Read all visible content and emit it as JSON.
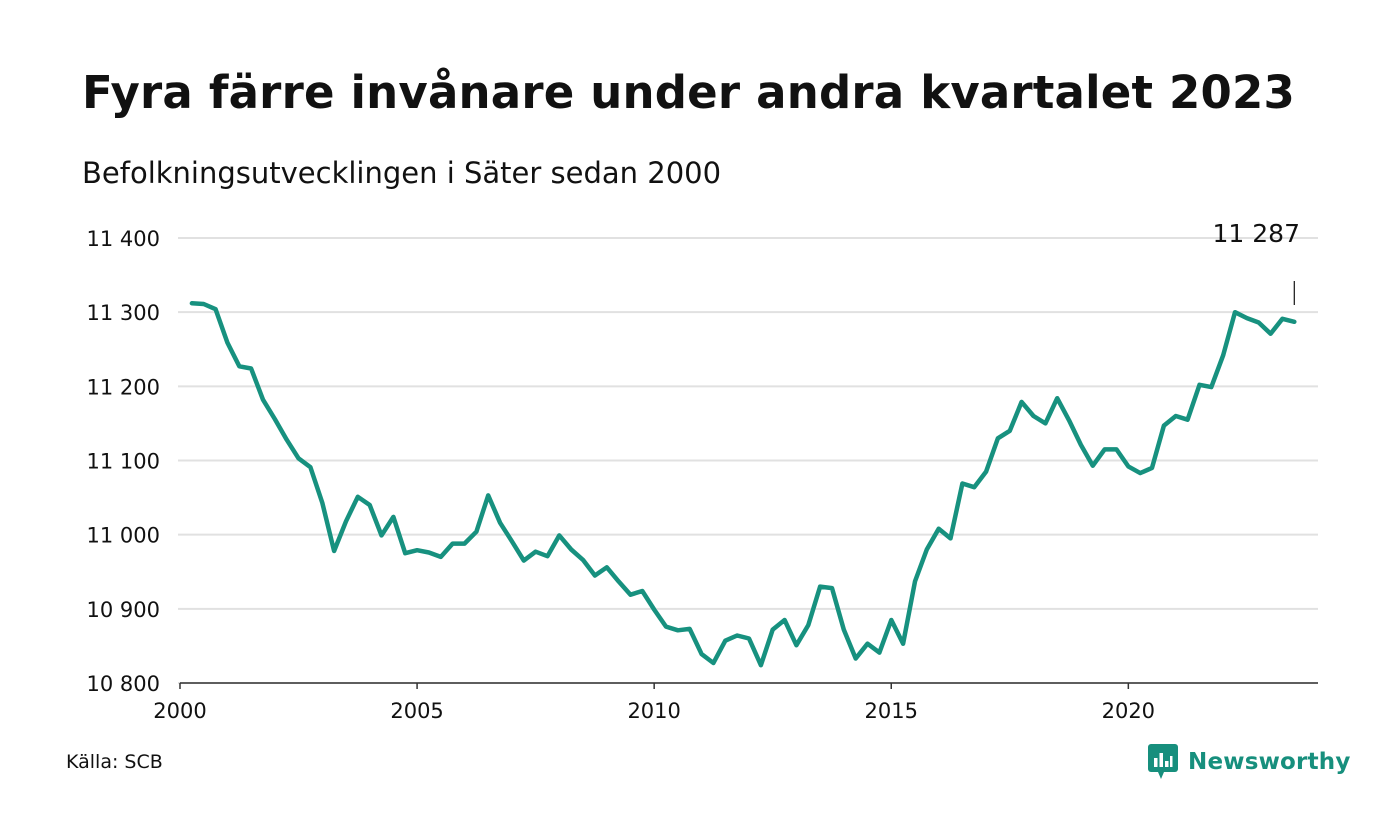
{
  "header": {
    "title": "Fyra färre invånare under andra kvartalet 2023",
    "subtitle": "Befolkningsutvecklingen i Säter sedan 2000"
  },
  "footer": {
    "source": "Källa: SCB",
    "brand": "Newsworthy"
  },
  "colors": {
    "line": "#17917f",
    "grid": "#e1e1e1",
    "brand": "#178f7d"
  },
  "chart_data": {
    "type": "line",
    "title": "Fyra färre invånare under andra kvartalet 2023",
    "subtitle": "Befolkningsutvecklingen i Säter sedan 2000",
    "xlabel": "",
    "ylabel": "",
    "x_ticks": [
      2000,
      2005,
      2010,
      2015,
      2020
    ],
    "y_ticks": [
      10800,
      10900,
      11000,
      11100,
      11200,
      11300,
      11400
    ],
    "y_tick_labels": [
      "10 800",
      "10 900",
      "11 000",
      "11 100",
      "11 200",
      "11 300",
      "11 400"
    ],
    "ylim": [
      10800,
      11400
    ],
    "xlim": [
      2000,
      2024
    ],
    "grid": true,
    "annotation": {
      "label": "11 287",
      "x": 2023.5,
      "y": 11287
    },
    "series": [
      {
        "x": [
          2000.25,
          2000.5,
          2000.75,
          2001.0,
          2001.25,
          2001.5,
          2001.75,
          2002.0,
          2002.25,
          2002.5,
          2002.75,
          2003.0,
          2003.25,
          2003.5,
          2003.75,
          2004.0,
          2004.25,
          2004.5,
          2004.75,
          2005.0,
          2005.25,
          2005.5,
          2005.75,
          2006.0,
          2006.25,
          2006.5,
          2006.75,
          2007.0,
          2007.25,
          2007.5,
          2007.75,
          2008.0,
          2008.25,
          2008.5,
          2008.75,
          2009.0,
          2009.25,
          2009.5,
          2009.75,
          2010.0,
          2010.25,
          2010.5,
          2010.75,
          2011.0,
          2011.25,
          2011.5,
          2011.75,
          2012.0,
          2012.25,
          2012.5,
          2012.75,
          2013.0,
          2013.25,
          2013.5,
          2013.75,
          2014.0,
          2014.25,
          2014.5,
          2014.75,
          2015.0,
          2015.25,
          2015.5,
          2015.75,
          2016.0,
          2016.25,
          2016.5,
          2016.75,
          2017.0,
          2017.25,
          2017.5,
          2017.75,
          2018.0,
          2018.25,
          2018.5,
          2018.75,
          2019.0,
          2019.25,
          2019.5,
          2019.75,
          2020.0,
          2020.25,
          2020.5,
          2020.75,
          2021.0,
          2021.25,
          2021.5,
          2021.75,
          2022.0,
          2022.25,
          2022.5,
          2022.75,
          2023.0,
          2023.25,
          2023.5
        ],
        "values": [
          11312,
          11311,
          11304,
          11259,
          11227,
          11224,
          11182,
          11156,
          11128,
          11103,
          11091,
          11043,
          10978,
          11018,
          11051,
          11040,
          10999,
          11024,
          10975,
          10979,
          10976,
          10970,
          10988,
          10988,
          11004,
          11053,
          11016,
          10991,
          10965,
          10977,
          10971,
          10999,
          10980,
          10966,
          10945,
          10956,
          10937,
          10919,
          10924,
          10899,
          10876,
          10871,
          10873,
          10839,
          10827,
          10857,
          10864,
          10860,
          10824,
          10872,
          10885,
          10851,
          10878,
          10930,
          10928,
          10872,
          10833,
          10853,
          10841,
          10885,
          10853,
          10937,
          10980,
          11008,
          10995,
          11069,
          11064,
          11085,
          11130,
          11140,
          11179,
          11160,
          11150,
          11184,
          11154,
          11121,
          11093,
          11115,
          11115,
          11092,
          11083,
          11090,
          11147,
          11160,
          11155,
          11202,
          11199,
          11242,
          11300,
          11292,
          11286,
          11271,
          11291,
          11287
        ]
      }
    ]
  }
}
